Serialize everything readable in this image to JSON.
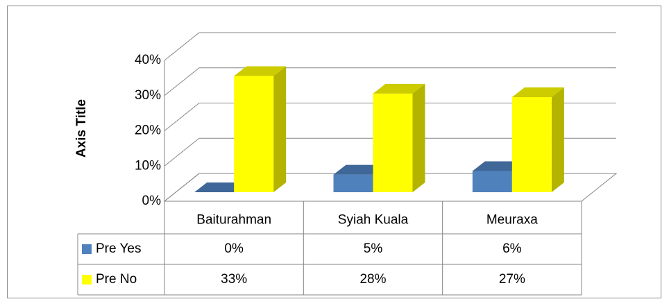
{
  "chart_data": {
    "type": "bar",
    "y_axis_label": "Axis Title",
    "categories": [
      "Baiturahman",
      "Syiah Kuala",
      "Meuraxa"
    ],
    "series": [
      {
        "name": "Pre Yes",
        "color": "#4f81bd",
        "values": [
          0,
          5,
          6
        ],
        "value_labels": [
          "0%",
          "5%",
          "6%"
        ]
      },
      {
        "name": "Pre No",
        "color": "#ffff00",
        "values": [
          33,
          28,
          27
        ],
        "value_labels": [
          "33%",
          "28%",
          "27%"
        ]
      }
    ],
    "ylim": [
      0,
      40
    ],
    "yticks": [
      {
        "value": 0,
        "label": "0%"
      },
      {
        "value": 10,
        "label": "10%"
      },
      {
        "value": 20,
        "label": "20%"
      },
      {
        "value": 30,
        "label": "30%"
      },
      {
        "value": 40,
        "label": "40%"
      }
    ],
    "grid": true,
    "data_table": true
  }
}
